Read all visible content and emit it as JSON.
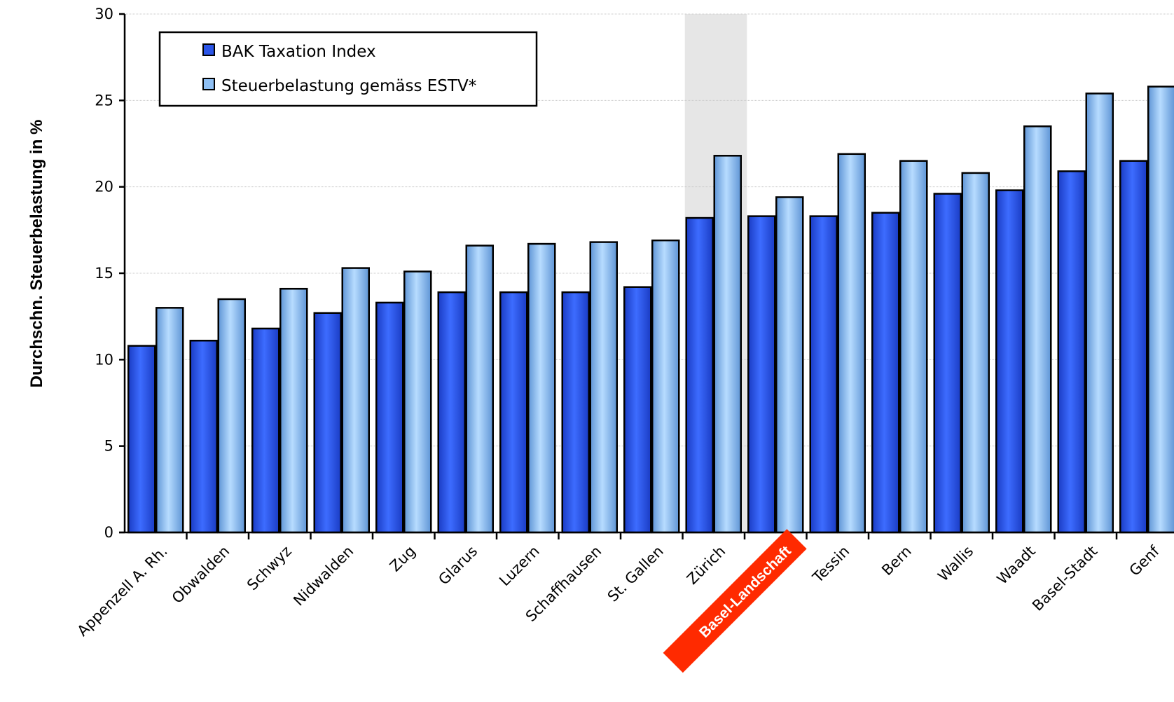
{
  "chart_data": {
    "type": "bar",
    "title": "",
    "xlabel": "",
    "ylabel": "Durchschn. Steuerbelastung in %",
    "ylim": [
      0,
      30
    ],
    "yticks": [
      "0",
      "5",
      "10",
      "15",
      "20",
      "25",
      "30"
    ],
    "grid": true,
    "legend_position": "top-left",
    "highlight_band_category": "Zürich",
    "highlight_label_category": "Basel-Landschaft",
    "categories": [
      "Appenzell A. Rh.",
      "Obwalden",
      "Schwyz",
      "Nidwalden",
      "Zug",
      "Glarus",
      "Luzern",
      "Schaffhausen",
      "St. Gallen",
      "Zürich",
      "Basel-Landschaft",
      "Tessin",
      "Bern",
      "Wallis",
      "Waadt",
      "Basel-Stadt",
      "Genf"
    ],
    "series": [
      {
        "name": "BAK Taxation Index",
        "color": "#2b55e8",
        "values": [
          10.8,
          11.1,
          11.8,
          12.7,
          13.3,
          13.9,
          13.9,
          13.9,
          14.2,
          18.2,
          18.3,
          18.3,
          18.5,
          19.6,
          19.8,
          20.9,
          21.5
        ]
      },
      {
        "name": "Steuerbelastung gemäss ESTV*",
        "color": "#8fc0f4",
        "values": [
          13.0,
          13.5,
          14.1,
          15.3,
          15.1,
          16.6,
          16.7,
          16.8,
          16.9,
          21.8,
          19.4,
          21.9,
          21.5,
          20.8,
          23.5,
          25.4,
          25.8
        ]
      }
    ],
    "colors": {
      "highlight_band": "#e6e6e6",
      "highlight_label_bg": "#ff2a00"
    }
  }
}
